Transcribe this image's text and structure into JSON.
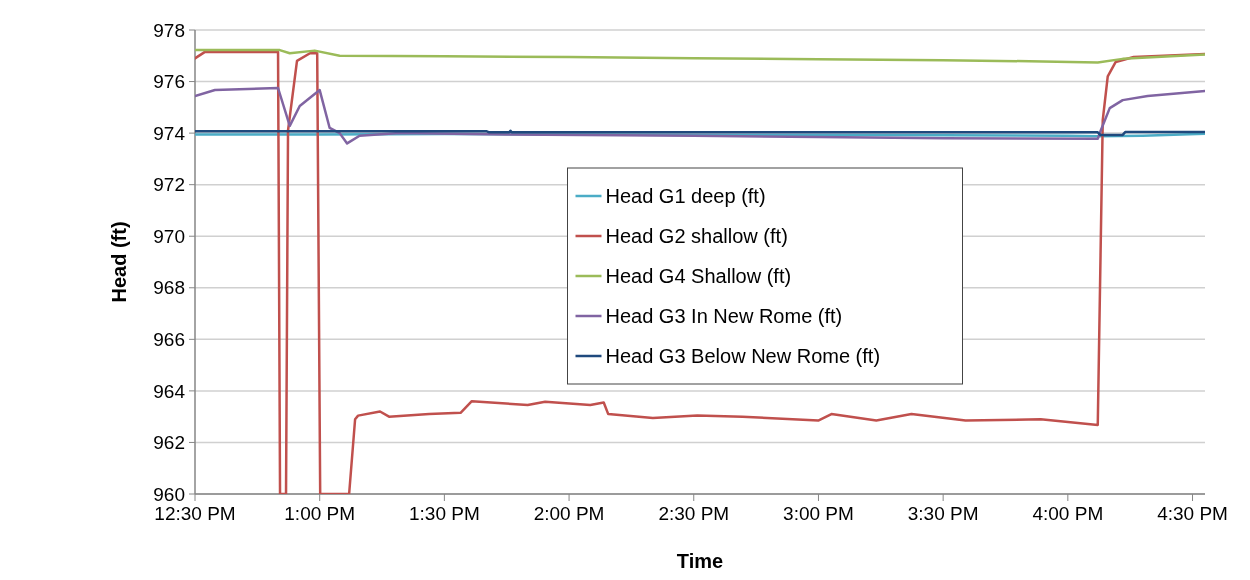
{
  "chart_data": {
    "type": "line",
    "xlabel": "Time",
    "ylabel": "Head (ft)",
    "xlim": [
      12.5,
      16.55
    ],
    "ylim": [
      960,
      978
    ],
    "xticks": [
      {
        "value": 12.5,
        "label": "12:30 PM"
      },
      {
        "value": 13,
        "label": "1:00 PM"
      },
      {
        "value": 13.5,
        "label": "1:30 PM"
      },
      {
        "value": 14,
        "label": "2:00 PM"
      },
      {
        "value": 14.5,
        "label": "2:30 PM"
      },
      {
        "value": 15,
        "label": "3:00 PM"
      },
      {
        "value": 15.5,
        "label": "3:30 PM"
      },
      {
        "value": 16,
        "label": "4:00 PM"
      },
      {
        "value": 16.5,
        "label": "4:30 PM"
      }
    ],
    "yticks": [
      960,
      962,
      964,
      966,
      968,
      970,
      972,
      974,
      976,
      978
    ],
    "grid": "y",
    "legend": "center",
    "marker": "none",
    "line_style": "solid",
    "series": [
      {
        "name": "Head G1 deep (ft)",
        "color": "#4bacc6",
        "x": [
          12.5,
          13.0,
          13.5,
          14.0,
          14.5,
          15.0,
          15.5,
          16.0,
          16.12,
          16.3,
          16.55
        ],
        "values": [
          973.95,
          973.95,
          973.97,
          973.95,
          973.93,
          973.93,
          973.92,
          973.9,
          973.88,
          973.9,
          973.98
        ]
      },
      {
        "name": "Head G2 shallow (ft)",
        "color": "#c0504d",
        "x": [
          12.5,
          12.54,
          12.833,
          12.841,
          12.865,
          12.873,
          12.909,
          12.961,
          12.99,
          13.002,
          13.118,
          13.142,
          13.154,
          13.242,
          13.278,
          13.439,
          13.565,
          13.61,
          13.834,
          13.904,
          14.085,
          14.139,
          14.157,
          14.336,
          14.514,
          14.695,
          14.999,
          15.052,
          15.232,
          15.373,
          15.59,
          15.891,
          16.12,
          16.14,
          16.16,
          16.192,
          16.264,
          16.55
        ],
        "values": [
          976.9,
          977.15,
          977.15,
          960,
          960,
          974.1,
          976.8,
          977.1,
          977.1,
          960,
          960,
          962.9,
          963.04,
          963.2,
          963.0,
          963.1,
          963.15,
          963.6,
          963.45,
          963.58,
          963.45,
          963.55,
          963.1,
          962.95,
          963.05,
          963.0,
          962.85,
          963.1,
          962.85,
          963.1,
          962.85,
          962.9,
          962.68,
          974.5,
          976.2,
          976.76,
          976.95,
          977.07
        ]
      },
      {
        "name": "Head G4 Shallow (ft)",
        "color": "#9bbb59",
        "x": [
          12.5,
          12.84,
          12.88,
          12.98,
          13.08,
          13.5,
          14.0,
          14.5,
          15.0,
          15.5,
          15.9,
          16.12,
          16.22,
          16.55
        ],
        "values": [
          977.22,
          977.22,
          977.1,
          977.2,
          977.0,
          976.98,
          976.95,
          976.9,
          976.87,
          976.83,
          976.78,
          976.74,
          976.88,
          977.05
        ]
      },
      {
        "name": "Head G3 In New Rome (ft)",
        "color": "#8064a2",
        "x": [
          12.5,
          12.58,
          12.833,
          12.88,
          12.92,
          13.0,
          13.04,
          13.08,
          13.11,
          13.16,
          13.32,
          13.75,
          14.5,
          15.0,
          15.5,
          16.12,
          16.132,
          16.168,
          16.22,
          16.32,
          16.55
        ],
        "values": [
          975.44,
          975.67,
          975.75,
          974.28,
          975.05,
          975.67,
          974.2,
          974.0,
          973.6,
          973.9,
          974.0,
          973.95,
          973.9,
          973.85,
          973.8,
          973.78,
          974.1,
          974.97,
          975.28,
          975.44,
          975.63
        ]
      },
      {
        "name": "Head G3 Below New Rome (ft)",
        "color": "#1f497d",
        "x": [
          12.5,
          13.67,
          13.68,
          13.76,
          13.765,
          13.77,
          14.5,
          15.5,
          16.12,
          16.13,
          16.22,
          16.23,
          16.55
        ],
        "values": [
          974.07,
          974.07,
          974.03,
          974.03,
          974.09,
          974.03,
          974.03,
          974.03,
          974.03,
          973.93,
          973.93,
          974.04,
          974.04
        ]
      }
    ]
  }
}
